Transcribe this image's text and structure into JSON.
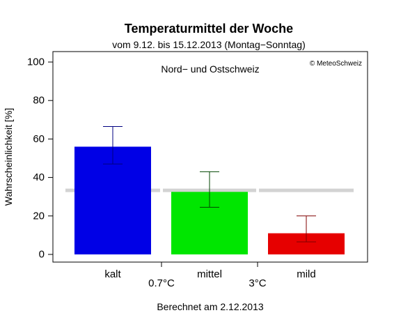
{
  "chart_data": {
    "type": "bar",
    "title": "Temperaturmittel der Woche",
    "subtitle": "vom 9.12. bis 15.12.2013 (Montag−Sonntag)",
    "region": "Nord− und Ostschweiz",
    "copyright": "© MeteoSchweiz",
    "ylabel": "Wahrscheinlichkeit [%]",
    "ylim": [
      0,
      100
    ],
    "yticks": [
      0,
      20,
      40,
      60,
      80,
      100
    ],
    "categories": [
      "kalt",
      "mittel",
      "mild"
    ],
    "values": [
      56,
      32.5,
      11
    ],
    "error_low": [
      47,
      24.5,
      6.5
    ],
    "error_high": [
      66.5,
      43,
      20
    ],
    "reference_value": 33.3,
    "thresholds": [
      "0.7°C",
      "3°C"
    ],
    "footer": "Berechnet am 2.12.2013",
    "colors": {
      "bars": [
        "#0000e6",
        "#00e600",
        "#e60000"
      ],
      "error_bars": [
        "#000080",
        "#004400",
        "#800000"
      ],
      "reference_line": "#d3d3d3"
    }
  }
}
